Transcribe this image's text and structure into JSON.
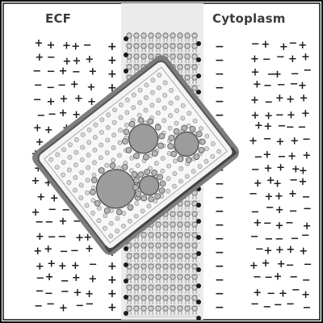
{
  "labels": {
    "extracellular": "ECF",
    "intracellular": "Cytoplasm"
  },
  "glyphs": {
    "positive": "+",
    "negative": "−"
  },
  "colors": {
    "background": "#ffffff",
    "membrane_band": "#ebebeb",
    "ink": "#1e1e1e",
    "inset_frame": "#8a8a8a",
    "inset_fill": "#f2f2f2"
  },
  "icons": {
    "inset": "membrane-closeup-icon"
  }
}
